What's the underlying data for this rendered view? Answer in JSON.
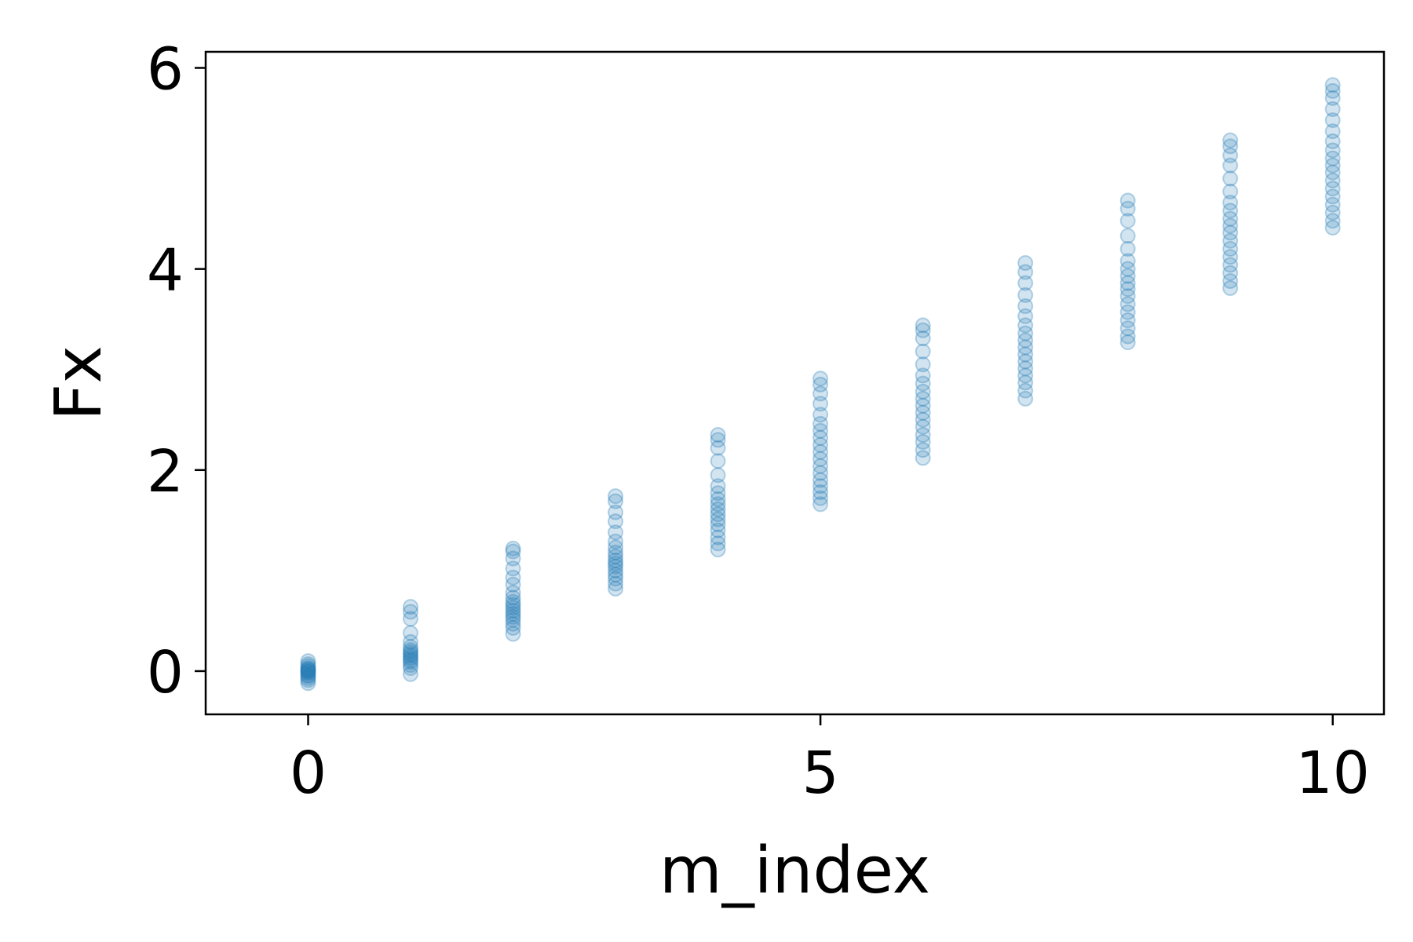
{
  "chart_data": {
    "type": "scatter",
    "title": "",
    "xlabel": "m_index",
    "ylabel": "Fx",
    "xlim": [
      -1,
      10.5
    ],
    "ylim": [
      -0.43,
      6.16
    ],
    "x_ticks": [
      0,
      5,
      10
    ],
    "y_ticks": [
      0,
      2,
      4,
      6
    ],
    "grid": false,
    "legend": "none",
    "marker_color": "#1f77b4",
    "marker_alpha": 0.2,
    "series": [
      {
        "points": [
          {
            "x": 0,
            "y": -0.12
          },
          {
            "x": 0,
            "y": -0.09
          },
          {
            "x": 0,
            "y": -0.07
          },
          {
            "x": 0,
            "y": -0.05
          },
          {
            "x": 0,
            "y": -0.04
          },
          {
            "x": 0,
            "y": -0.02
          },
          {
            "x": 0,
            "y": -0.01
          },
          {
            "x": 0,
            "y": 0.0
          },
          {
            "x": 0,
            "y": 0.01
          },
          {
            "x": 0,
            "y": 0.02
          },
          {
            "x": 0,
            "y": 0.03
          },
          {
            "x": 0,
            "y": 0.05
          },
          {
            "x": 0,
            "y": 0.07
          },
          {
            "x": 0,
            "y": 0.1
          },
          {
            "x": 1,
            "y": -0.03
          },
          {
            "x": 1,
            "y": 0.03
          },
          {
            "x": 1,
            "y": 0.06
          },
          {
            "x": 1,
            "y": 0.09
          },
          {
            "x": 1,
            "y": 0.11
          },
          {
            "x": 1,
            "y": 0.13
          },
          {
            "x": 1,
            "y": 0.15
          },
          {
            "x": 1,
            "y": 0.17
          },
          {
            "x": 1,
            "y": 0.19
          },
          {
            "x": 1,
            "y": 0.21
          },
          {
            "x": 1,
            "y": 0.24
          },
          {
            "x": 1,
            "y": 0.29
          },
          {
            "x": 1,
            "y": 0.38
          },
          {
            "x": 1,
            "y": 0.52
          },
          {
            "x": 1,
            "y": 0.59
          },
          {
            "x": 1,
            "y": 0.64
          },
          {
            "x": 2,
            "y": 0.37
          },
          {
            "x": 2,
            "y": 0.43
          },
          {
            "x": 2,
            "y": 0.47
          },
          {
            "x": 2,
            "y": 0.51
          },
          {
            "x": 2,
            "y": 0.54
          },
          {
            "x": 2,
            "y": 0.57
          },
          {
            "x": 2,
            "y": 0.6
          },
          {
            "x": 2,
            "y": 0.63
          },
          {
            "x": 2,
            "y": 0.66
          },
          {
            "x": 2,
            "y": 0.69
          },
          {
            "x": 2,
            "y": 0.73
          },
          {
            "x": 2,
            "y": 0.78
          },
          {
            "x": 2,
            "y": 0.86
          },
          {
            "x": 2,
            "y": 0.93
          },
          {
            "x": 2,
            "y": 1.02
          },
          {
            "x": 2,
            "y": 1.12
          },
          {
            "x": 2,
            "y": 1.19
          },
          {
            "x": 2,
            "y": 1.22
          },
          {
            "x": 3,
            "y": 0.82
          },
          {
            "x": 3,
            "y": 0.87
          },
          {
            "x": 3,
            "y": 0.92
          },
          {
            "x": 3,
            "y": 0.96
          },
          {
            "x": 3,
            "y": 1.0
          },
          {
            "x": 3,
            "y": 1.04
          },
          {
            "x": 3,
            "y": 1.07
          },
          {
            "x": 3,
            "y": 1.1
          },
          {
            "x": 3,
            "y": 1.14
          },
          {
            "x": 3,
            "y": 1.18
          },
          {
            "x": 3,
            "y": 1.23
          },
          {
            "x": 3,
            "y": 1.29
          },
          {
            "x": 3,
            "y": 1.38
          },
          {
            "x": 3,
            "y": 1.49
          },
          {
            "x": 3,
            "y": 1.58
          },
          {
            "x": 3,
            "y": 1.69
          },
          {
            "x": 3,
            "y": 1.74
          },
          {
            "x": 4,
            "y": 1.21
          },
          {
            "x": 4,
            "y": 1.27
          },
          {
            "x": 4,
            "y": 1.33
          },
          {
            "x": 4,
            "y": 1.4
          },
          {
            "x": 4,
            "y": 1.46
          },
          {
            "x": 4,
            "y": 1.51
          },
          {
            "x": 4,
            "y": 1.56
          },
          {
            "x": 4,
            "y": 1.61
          },
          {
            "x": 4,
            "y": 1.66
          },
          {
            "x": 4,
            "y": 1.71
          },
          {
            "x": 4,
            "y": 1.77
          },
          {
            "x": 4,
            "y": 1.84
          },
          {
            "x": 4,
            "y": 1.95
          },
          {
            "x": 4,
            "y": 2.09
          },
          {
            "x": 4,
            "y": 2.22
          },
          {
            "x": 4,
            "y": 2.3
          },
          {
            "x": 4,
            "y": 2.35
          },
          {
            "x": 5,
            "y": 1.66
          },
          {
            "x": 5,
            "y": 1.72
          },
          {
            "x": 5,
            "y": 1.78
          },
          {
            "x": 5,
            "y": 1.84
          },
          {
            "x": 5,
            "y": 1.9
          },
          {
            "x": 5,
            "y": 1.97
          },
          {
            "x": 5,
            "y": 2.04
          },
          {
            "x": 5,
            "y": 2.11
          },
          {
            "x": 5,
            "y": 2.18
          },
          {
            "x": 5,
            "y": 2.25
          },
          {
            "x": 5,
            "y": 2.32
          },
          {
            "x": 5,
            "y": 2.39
          },
          {
            "x": 5,
            "y": 2.46
          },
          {
            "x": 5,
            "y": 2.55
          },
          {
            "x": 5,
            "y": 2.66
          },
          {
            "x": 5,
            "y": 2.76
          },
          {
            "x": 5,
            "y": 2.85
          },
          {
            "x": 5,
            "y": 2.91
          },
          {
            "x": 6,
            "y": 2.12
          },
          {
            "x": 6,
            "y": 2.2
          },
          {
            "x": 6,
            "y": 2.28
          },
          {
            "x": 6,
            "y": 2.35
          },
          {
            "x": 6,
            "y": 2.43
          },
          {
            "x": 6,
            "y": 2.5
          },
          {
            "x": 6,
            "y": 2.57
          },
          {
            "x": 6,
            "y": 2.64
          },
          {
            "x": 6,
            "y": 2.71
          },
          {
            "x": 6,
            "y": 2.78
          },
          {
            "x": 6,
            "y": 2.86
          },
          {
            "x": 6,
            "y": 2.94
          },
          {
            "x": 6,
            "y": 3.05
          },
          {
            "x": 6,
            "y": 3.18
          },
          {
            "x": 6,
            "y": 3.31
          },
          {
            "x": 6,
            "y": 3.39
          },
          {
            "x": 6,
            "y": 3.44
          },
          {
            "x": 7,
            "y": 2.71
          },
          {
            "x": 7,
            "y": 2.79
          },
          {
            "x": 7,
            "y": 2.87
          },
          {
            "x": 7,
            "y": 2.94
          },
          {
            "x": 7,
            "y": 3.01
          },
          {
            "x": 7,
            "y": 3.08
          },
          {
            "x": 7,
            "y": 3.15
          },
          {
            "x": 7,
            "y": 3.22
          },
          {
            "x": 7,
            "y": 3.29
          },
          {
            "x": 7,
            "y": 3.36
          },
          {
            "x": 7,
            "y": 3.44
          },
          {
            "x": 7,
            "y": 3.53
          },
          {
            "x": 7,
            "y": 3.63
          },
          {
            "x": 7,
            "y": 3.74
          },
          {
            "x": 7,
            "y": 3.86
          },
          {
            "x": 7,
            "y": 3.97
          },
          {
            "x": 7,
            "y": 4.06
          },
          {
            "x": 8,
            "y": 3.27
          },
          {
            "x": 8,
            "y": 3.33
          },
          {
            "x": 8,
            "y": 3.41
          },
          {
            "x": 8,
            "y": 3.49
          },
          {
            "x": 8,
            "y": 3.57
          },
          {
            "x": 8,
            "y": 3.65
          },
          {
            "x": 8,
            "y": 3.73
          },
          {
            "x": 8,
            "y": 3.8
          },
          {
            "x": 8,
            "y": 3.86
          },
          {
            "x": 8,
            "y": 3.93
          },
          {
            "x": 8,
            "y": 4.0
          },
          {
            "x": 8,
            "y": 4.08
          },
          {
            "x": 8,
            "y": 4.2
          },
          {
            "x": 8,
            "y": 4.33
          },
          {
            "x": 8,
            "y": 4.48
          },
          {
            "x": 8,
            "y": 4.6
          },
          {
            "x": 8,
            "y": 4.68
          },
          {
            "x": 9,
            "y": 3.81
          },
          {
            "x": 9,
            "y": 3.88
          },
          {
            "x": 9,
            "y": 3.96
          },
          {
            "x": 9,
            "y": 4.04
          },
          {
            "x": 9,
            "y": 4.12
          },
          {
            "x": 9,
            "y": 4.2
          },
          {
            "x": 9,
            "y": 4.28
          },
          {
            "x": 9,
            "y": 4.36
          },
          {
            "x": 9,
            "y": 4.43
          },
          {
            "x": 9,
            "y": 4.5
          },
          {
            "x": 9,
            "y": 4.58
          },
          {
            "x": 9,
            "y": 4.66
          },
          {
            "x": 9,
            "y": 4.77
          },
          {
            "x": 9,
            "y": 4.9
          },
          {
            "x": 9,
            "y": 5.03
          },
          {
            "x": 9,
            "y": 5.13
          },
          {
            "x": 9,
            "y": 5.22
          },
          {
            "x": 9,
            "y": 5.28
          },
          {
            "x": 10,
            "y": 4.41
          },
          {
            "x": 10,
            "y": 4.48
          },
          {
            "x": 10,
            "y": 4.56
          },
          {
            "x": 10,
            "y": 4.64
          },
          {
            "x": 10,
            "y": 4.72
          },
          {
            "x": 10,
            "y": 4.8
          },
          {
            "x": 10,
            "y": 4.88
          },
          {
            "x": 10,
            "y": 4.96
          },
          {
            "x": 10,
            "y": 5.03
          },
          {
            "x": 10,
            "y": 5.1
          },
          {
            "x": 10,
            "y": 5.18
          },
          {
            "x": 10,
            "y": 5.27
          },
          {
            "x": 10,
            "y": 5.37
          },
          {
            "x": 10,
            "y": 5.48
          },
          {
            "x": 10,
            "y": 5.59
          },
          {
            "x": 10,
            "y": 5.7
          },
          {
            "x": 10,
            "y": 5.77
          },
          {
            "x": 10,
            "y": 5.83
          }
        ]
      }
    ]
  }
}
